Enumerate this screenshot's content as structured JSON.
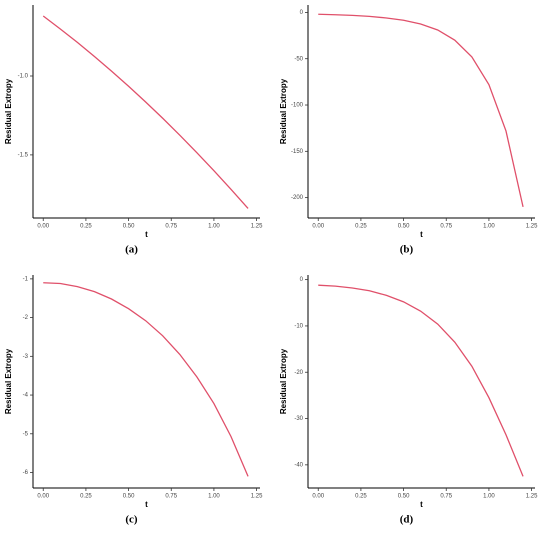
{
  "chart_data": [
    {
      "type": "line",
      "caption": "(a)",
      "x_label": "t",
      "y_label": "Residual Extropy",
      "x": [
        0,
        0.1,
        0.2,
        0.3,
        0.4,
        0.5,
        0.6,
        0.7,
        0.8,
        0.9,
        1.0,
        1.1,
        1.2
      ],
      "series": [
        {
          "color": "#e0506a",
          "values": [
            -0.62,
            -0.702,
            -0.787,
            -0.876,
            -0.969,
            -1.065,
            -1.165,
            -1.268,
            -1.375,
            -1.486,
            -1.6,
            -1.718,
            -1.839
          ]
        }
      ],
      "xlim": [
        -0.06,
        1.27
      ],
      "ylim": [
        -1.9,
        -0.55
      ],
      "xticks": [
        {
          "value": 0,
          "label": "0.00"
        },
        {
          "value": 0.25,
          "label": "0.25"
        },
        {
          "value": 0.5,
          "label": "0.50"
        },
        {
          "value": 0.75,
          "label": "0.75"
        },
        {
          "value": 1,
          "label": "1.00"
        },
        {
          "value": 1.25,
          "label": "1.25"
        }
      ],
      "yticks": [
        {
          "value": -1,
          "label": "-1.0"
        },
        {
          "value": -1.5,
          "label": "-1.5"
        }
      ]
    },
    {
      "type": "line",
      "caption": "(b)",
      "x_label": "t",
      "y_label": "Residual Extropy",
      "x": [
        0,
        0.1,
        0.2,
        0.3,
        0.4,
        0.5,
        0.6,
        0.7,
        0.8,
        0.9,
        1.0,
        1.1,
        1.2
      ],
      "series": [
        {
          "color": "#e0506a",
          "values": [
            -2,
            -2.5,
            -3.2,
            -4.3,
            -6,
            -8.5,
            -12.5,
            -19,
            -30,
            -48,
            -78,
            -128,
            -210
          ]
        }
      ],
      "xlim": [
        -0.06,
        1.27
      ],
      "ylim": [
        -222,
        8
      ],
      "xticks": [
        {
          "value": 0,
          "label": "0.00"
        },
        {
          "value": 0.25,
          "label": "0.25"
        },
        {
          "value": 0.5,
          "label": "0.50"
        },
        {
          "value": 0.75,
          "label": "0.75"
        },
        {
          "value": 1,
          "label": "1.00"
        },
        {
          "value": 1.25,
          "label": "1.25"
        }
      ],
      "yticks": [
        0,
        -50,
        -100,
        -150,
        -200
      ]
    },
    {
      "type": "line",
      "caption": "(c)",
      "x_label": "t",
      "y_label": "Residual Extropy",
      "x": [
        0,
        0.1,
        0.2,
        0.3,
        0.4,
        0.5,
        0.6,
        0.7,
        0.8,
        0.9,
        1.0,
        1.1,
        1.2
      ],
      "series": [
        {
          "color": "#e0506a",
          "values": [
            -1.1,
            -1.12,
            -1.2,
            -1.33,
            -1.52,
            -1.77,
            -2.08,
            -2.47,
            -2.95,
            -3.53,
            -4.22,
            -5.07,
            -6.1
          ]
        }
      ],
      "xlim": [
        -0.06,
        1.27
      ],
      "ylim": [
        -6.4,
        -0.9
      ],
      "xticks": [
        {
          "value": 0,
          "label": "0.00"
        },
        {
          "value": 0.25,
          "label": "0.25"
        },
        {
          "value": 0.5,
          "label": "0.50"
        },
        {
          "value": 0.75,
          "label": "0.75"
        },
        {
          "value": 1,
          "label": "1.00"
        },
        {
          "value": 1.25,
          "label": "1.25"
        }
      ],
      "yticks": [
        -1,
        -2,
        -3,
        -4,
        -5,
        -6
      ]
    },
    {
      "type": "line",
      "caption": "(d)",
      "x_label": "t",
      "y_label": "Residual Extropy",
      "x": [
        0,
        0.1,
        0.2,
        0.3,
        0.4,
        0.5,
        0.6,
        0.7,
        0.8,
        0.9,
        1.0,
        1.1,
        1.2
      ],
      "series": [
        {
          "color": "#e0506a",
          "values": [
            -1.2,
            -1.4,
            -1.8,
            -2.4,
            -3.4,
            -4.8,
            -6.8,
            -9.6,
            -13.5,
            -18.7,
            -25.5,
            -33.5,
            -42.5
          ]
        }
      ],
      "xlim": [
        -0.06,
        1.27
      ],
      "ylim": [
        -45,
        1
      ],
      "xticks": [
        {
          "value": 0,
          "label": "0.00"
        },
        {
          "value": 0.25,
          "label": "0.25"
        },
        {
          "value": 0.5,
          "label": "0.50"
        },
        {
          "value": 0.75,
          "label": "0.75"
        },
        {
          "value": 1,
          "label": "1.00"
        },
        {
          "value": 1.25,
          "label": "1.25"
        }
      ],
      "yticks": [
        0,
        -10,
        -20,
        -30,
        -40
      ]
    }
  ]
}
